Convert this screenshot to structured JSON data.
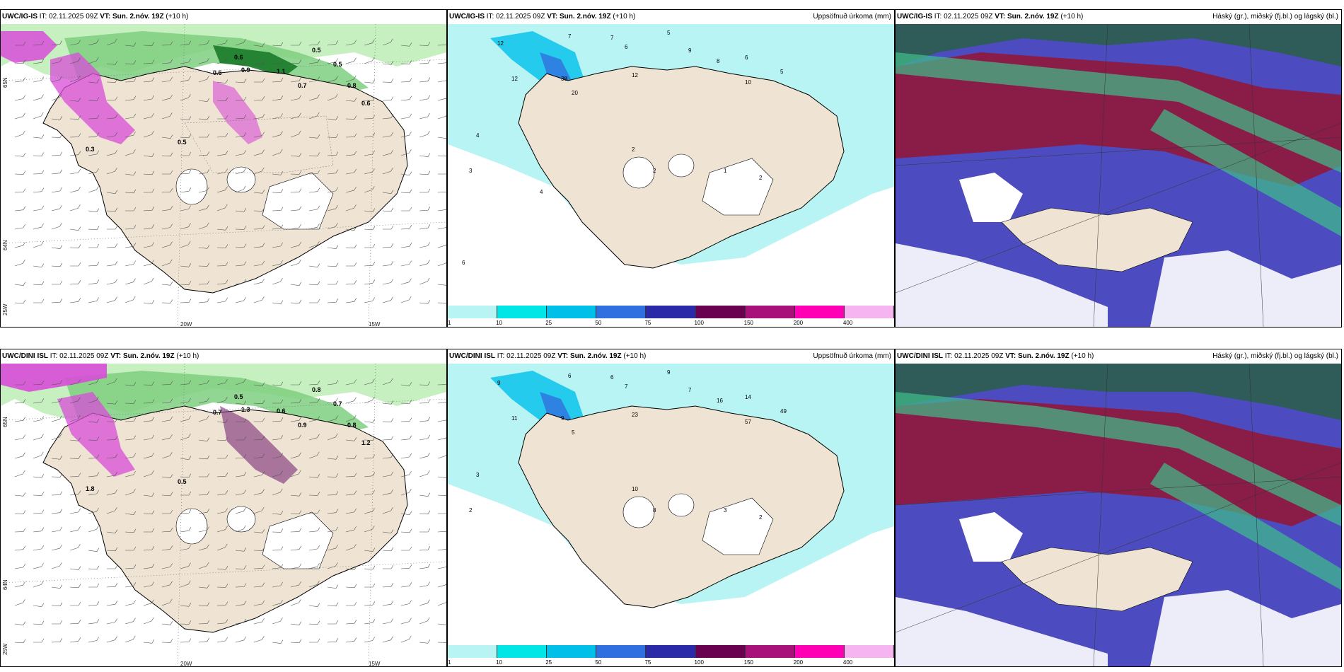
{
  "panels": {
    "r0c0": {
      "model": "UWC/IG-IS",
      "it": "IT: 02.11.2025 09Z",
      "vt": "VT: Sun. 2.nóv. 19Z",
      "lead": "(+10 h)",
      "right": ""
    },
    "r0c1": {
      "model": "UWC/IG-IS",
      "it": "IT: 02.11.2025 09Z",
      "vt": "VT: Sun. 2.nóv. 19Z",
      "lead": "(+10 h)",
      "right": "Uppsöfnuð úrkoma (mm)"
    },
    "r0c2": {
      "model": "UWC/IG-IS",
      "it": "IT: 02.11.2025 09Z",
      "vt": "VT: Sun. 2.nóv. 19Z",
      "lead": "(+10 h)",
      "right": "Háský (gr.), miðský (fj.bl.) og lágský (bl.)"
    },
    "r1c0": {
      "model": "UWC/DINI ISL",
      "it": "IT: 02.11.2025 09Z",
      "vt": "VT: Sun. 2.nóv. 19Z",
      "lead": "(+10 h)",
      "right": ""
    },
    "r1c1": {
      "model": "UWC/DINI ISL",
      "it": "IT: 02.11.2025 09Z",
      "vt": "VT: Sun. 2.nóv. 19Z",
      "lead": "(+10 h)",
      "right": "Uppsöfnuð úrkoma (mm)"
    },
    "r1c2": {
      "model": "UWC/DINI ISL",
      "it": "IT: 02.11.2025 09Z",
      "vt": "VT: Sun. 2.nóv. 19Z",
      "lead": "(+10 h)",
      "right": "Háský (gr.), miðský (fj.bl.) og lágský (bl.)"
    }
  },
  "axes": {
    "lon": [
      "20W",
      "15W"
    ],
    "lat": [
      "65N",
      "64N",
      "25W"
    ]
  },
  "colorbar": {
    "labels": [
      "1",
      "10",
      "25",
      "50",
      "75",
      "100",
      "150",
      "200",
      "400"
    ],
    "colors": [
      "#b8f4f4",
      "#00e6e6",
      "#00c0ea",
      "#2f6fe0",
      "#2a2aa8",
      "#6a0050",
      "#a8107a",
      "#ff00b4",
      "#f6b4f0"
    ]
  },
  "colors": {
    "land": "#efe3d3",
    "sea_precip": "#b8f4f4",
    "green_light": "#c6f0c0",
    "green_mid": "#7fcf80",
    "green_dark": "#1a7a2a",
    "magenta": "#d84cd8",
    "cloud_high": "#8a1c48",
    "cloud_mid": "#2f5b58",
    "cloud_low": "#4c4cc0"
  },
  "precip_labels_top": [
    "12",
    "7",
    "7",
    "5",
    "6",
    "9",
    "8",
    "6",
    "5",
    "10",
    "12",
    "12",
    "38",
    "20",
    "4",
    "3",
    "2",
    "2",
    "1",
    "2",
    "4",
    "6"
  ],
  "precip_labels_bottom": [
    "9",
    "6",
    "6",
    "9",
    "7",
    "7",
    "16",
    "14",
    "49",
    "57",
    "23",
    "11",
    "9",
    "5",
    "3",
    "2",
    "10",
    "8",
    "3",
    "2"
  ],
  "wind_labels_top": [
    "0.5",
    "0.6",
    "0.6",
    "0.9",
    "1.1",
    "0.7",
    "0.5",
    "0.8",
    "0.6",
    "0.5",
    "0.3"
  ],
  "wind_labels_bottom": [
    "0.8",
    "0.7",
    "0.5",
    "1.3",
    "0.6",
    "0.9",
    "0.7",
    "0.8",
    "1.2",
    "0.5",
    "1.8"
  ]
}
